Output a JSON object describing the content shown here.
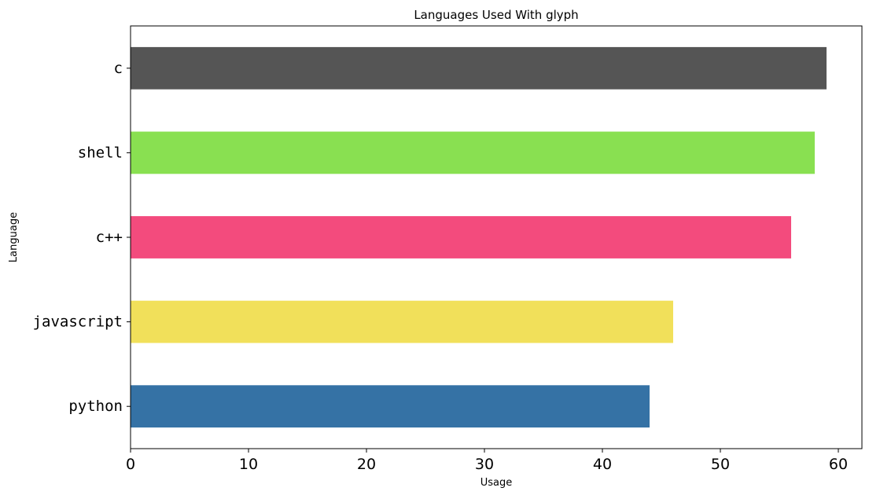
{
  "chart_data": {
    "type": "bar",
    "orientation": "horizontal",
    "title": "Languages Used With glyph",
    "xlabel": "Usage",
    "ylabel": "Language",
    "categories": [
      "python",
      "javascript",
      "c++",
      "shell",
      "c"
    ],
    "values": [
      44,
      46,
      56,
      58,
      59
    ],
    "colors": [
      "#3572A5",
      "#F1E05A",
      "#F34B7D",
      "#89E051",
      "#555555"
    ],
    "xlim": [
      0,
      62
    ],
    "xticks": [
      0,
      10,
      20,
      30,
      40,
      50,
      60
    ],
    "grid": false,
    "legend": "none"
  }
}
